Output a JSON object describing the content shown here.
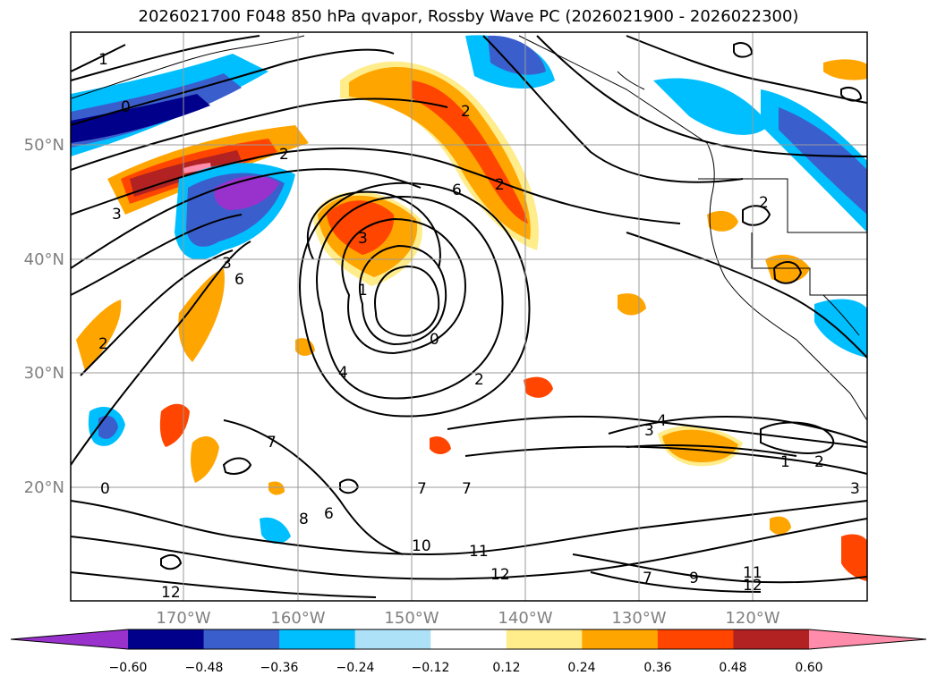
{
  "title": "2026021700 F048 850 hPa qvapor, Rossby Wave PC (2026021900 - 2026022300)",
  "latitude_labels": [
    "50°N",
    "40°N",
    "30°N",
    "20°N"
  ],
  "longitude_labels": [
    "170°W",
    "160°W",
    "150°W",
    "140°W",
    "130°W",
    "120°W"
  ],
  "colorbar": {
    "tick_labels": [
      "−0.60",
      "−0.48",
      "−0.36",
      "−0.24",
      "−0.12",
      "0.12",
      "0.24",
      "0.36",
      "0.48",
      "0.60"
    ],
    "colors": [
      "#9932CC",
      "#00008B",
      "#3A5FCD",
      "#00BFFF",
      "#ADE1F7",
      "#FFFFFF",
      "#FFEC8B",
      "#FFA500",
      "#FF4500",
      "#B22222",
      "#FF8CAA"
    ]
  },
  "contour_labels": [
    "1",
    "0",
    "2",
    "3",
    "2",
    "6",
    "3",
    "3",
    "1",
    "2",
    "0",
    "2",
    "4",
    "2",
    "0",
    "7",
    "6",
    "6",
    "8",
    "7",
    "7",
    "10",
    "11",
    "12",
    "12",
    "3",
    "4",
    "1",
    "2",
    "7",
    "9",
    "11",
    "12",
    "2",
    "3"
  ]
}
